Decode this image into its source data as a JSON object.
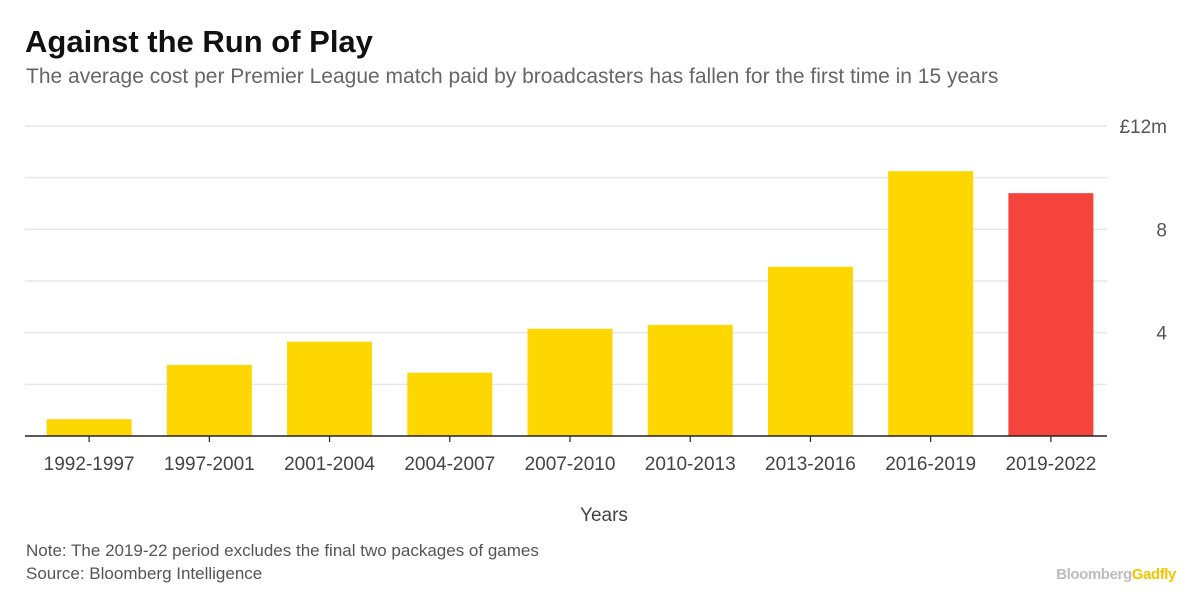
{
  "title": "Against the Run of Play",
  "subtitle": "The average cost per Premier League match paid by broadcasters has fallen for the first time in 15 years",
  "note": "Note: The 2019-22 period excludes the final two packages of games",
  "source": "Source: Bloomberg Intelligence",
  "brand": {
    "part1": "Bloomberg",
    "part2": "Gadfly"
  },
  "chart_data": {
    "type": "bar",
    "title": "Against the Run of Play",
    "xlabel": "Years",
    "ylabel": "",
    "ylim": [
      0,
      12
    ],
    "y_ticks": [
      {
        "value": 4,
        "label": "4"
      },
      {
        "value": 8,
        "label": "8"
      },
      {
        "value": 12,
        "label": "£12m"
      }
    ],
    "y_gridlines": [
      2,
      4,
      6,
      8,
      10,
      12
    ],
    "categories": [
      "1992-1997",
      "1997-2001",
      "2001-2004",
      "2004-2007",
      "2007-2010",
      "2010-2013",
      "2013-2016",
      "2016-2019",
      "2019-2022"
    ],
    "values": [
      0.65,
      2.75,
      3.65,
      2.45,
      4.15,
      4.3,
      6.55,
      10.25,
      9.4
    ],
    "colors": [
      "#FFD700",
      "#FFD700",
      "#FFD700",
      "#FFD700",
      "#FFD700",
      "#FFD700",
      "#FFD700",
      "#FFD700",
      "#F5443B"
    ],
    "grid": true,
    "y_axis_side": "right"
  }
}
